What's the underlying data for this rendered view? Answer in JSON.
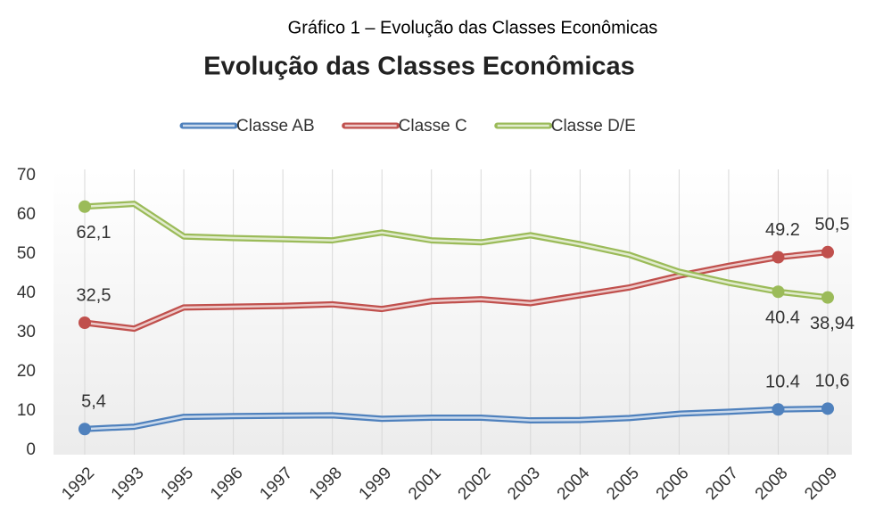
{
  "chart_data": {
    "type": "line",
    "caption": "Gráfico 1 – Evolução das Classes Econômicas",
    "title": "Evolução das Classes Econômicas",
    "categories": [
      "1992",
      "1993",
      "1995",
      "1996",
      "1997",
      "1998",
      "1999",
      "2001",
      "2002",
      "2003",
      "2004",
      "2005",
      "2006",
      "2007",
      "2008",
      "2009"
    ],
    "series": [
      {
        "name": "Classe AB",
        "color": "#4f81bd",
        "values": [
          5.4,
          6,
          8.5,
          8.7,
          8.8,
          8.9,
          8,
          8.3,
          8.3,
          7.6,
          7.7,
          8.2,
          9.3,
          9.8,
          10.4,
          10.6
        ],
        "value_labels": [
          "5,4",
          null,
          null,
          null,
          null,
          null,
          null,
          null,
          null,
          null,
          null,
          null,
          null,
          null,
          "10.4",
          "10,6"
        ]
      },
      {
        "name": "Classe C",
        "color": "#c0504d",
        "values": [
          32.5,
          31,
          36.4,
          36.6,
          36.8,
          37.2,
          36,
          38,
          38.5,
          37.5,
          39.5,
          41.5,
          44.5,
          47,
          49.2,
          50.5
        ],
        "value_labels": [
          "32,5",
          null,
          null,
          null,
          null,
          null,
          null,
          null,
          null,
          null,
          null,
          null,
          null,
          null,
          "49.2",
          "50,5"
        ]
      },
      {
        "name": "Classe D/E",
        "color": "#9bbb59",
        "values": [
          62.1,
          62.8,
          54.5,
          54.1,
          53.8,
          53.5,
          55.5,
          53.5,
          53,
          54.8,
          52.5,
          49.8,
          45.5,
          42.7,
          40.4,
          38.94
        ],
        "value_labels": [
          "62,1",
          null,
          null,
          null,
          null,
          null,
          null,
          null,
          null,
          null,
          null,
          null,
          null,
          null,
          "40.4",
          "38,94"
        ]
      }
    ],
    "ylim": [
      0,
      70
    ],
    "yticks": [
      0,
      10,
      20,
      30,
      40,
      50,
      60,
      70
    ],
    "grid": true,
    "legend": "top"
  }
}
